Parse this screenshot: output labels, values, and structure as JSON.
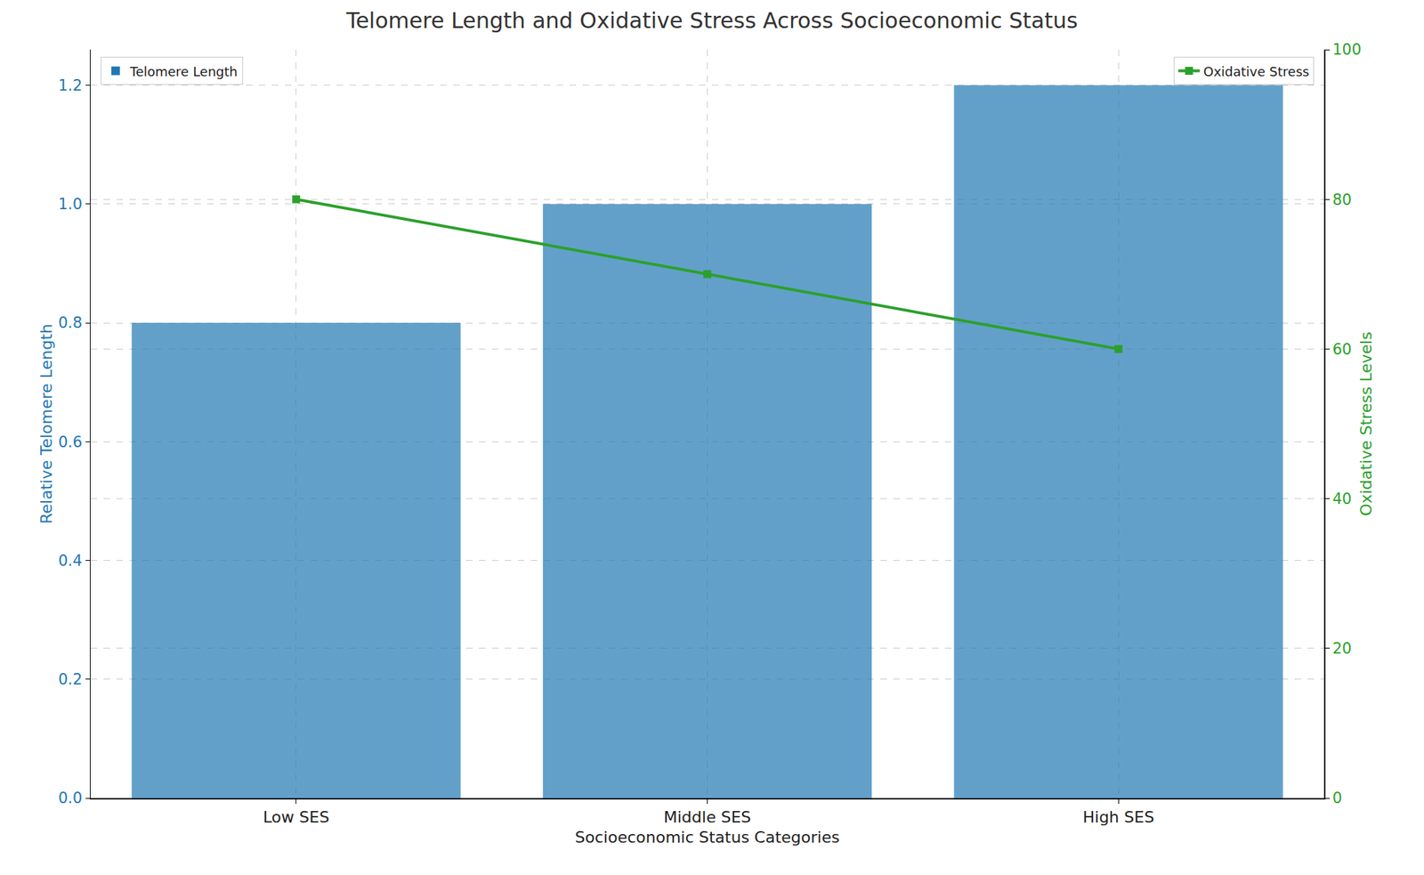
{
  "chart_data": {
    "type": "bar",
    "title": "Telomere Length and Oxidative Stress Across Socioeconomic Status",
    "x_label": "Socioeconomic Status Categories",
    "y_label": "Relative Telomere Length",
    "y2_label": "Oxidative Stress Levels",
    "categories": [
      "Low SES",
      "Middle SES",
      "High SES"
    ],
    "series": [
      {
        "name": "Telomere Length",
        "type": "bar",
        "color": "#1f77b4",
        "values": [
          0.8,
          1.0,
          1.2
        ],
        "legend": "upper left"
      },
      {
        "name": "Oxidative Stress",
        "type": "line",
        "axis": "y2",
        "color": "#2ca02c",
        "marker": "square",
        "values": [
          80,
          70,
          60
        ],
        "legend": "upper right"
      }
    ],
    "ylim": [
      0,
      1.26
    ],
    "yticks": [
      {
        "value": 0,
        "label": "0.0"
      },
      0.2,
      0.4,
      0.6,
      0.8,
      {
        "value": 1,
        "label": "1.0"
      },
      1.2
    ],
    "y2lim": [
      0,
      100
    ],
    "y2ticks": [
      0,
      20,
      40,
      60,
      80,
      100
    ],
    "grid": true
  }
}
